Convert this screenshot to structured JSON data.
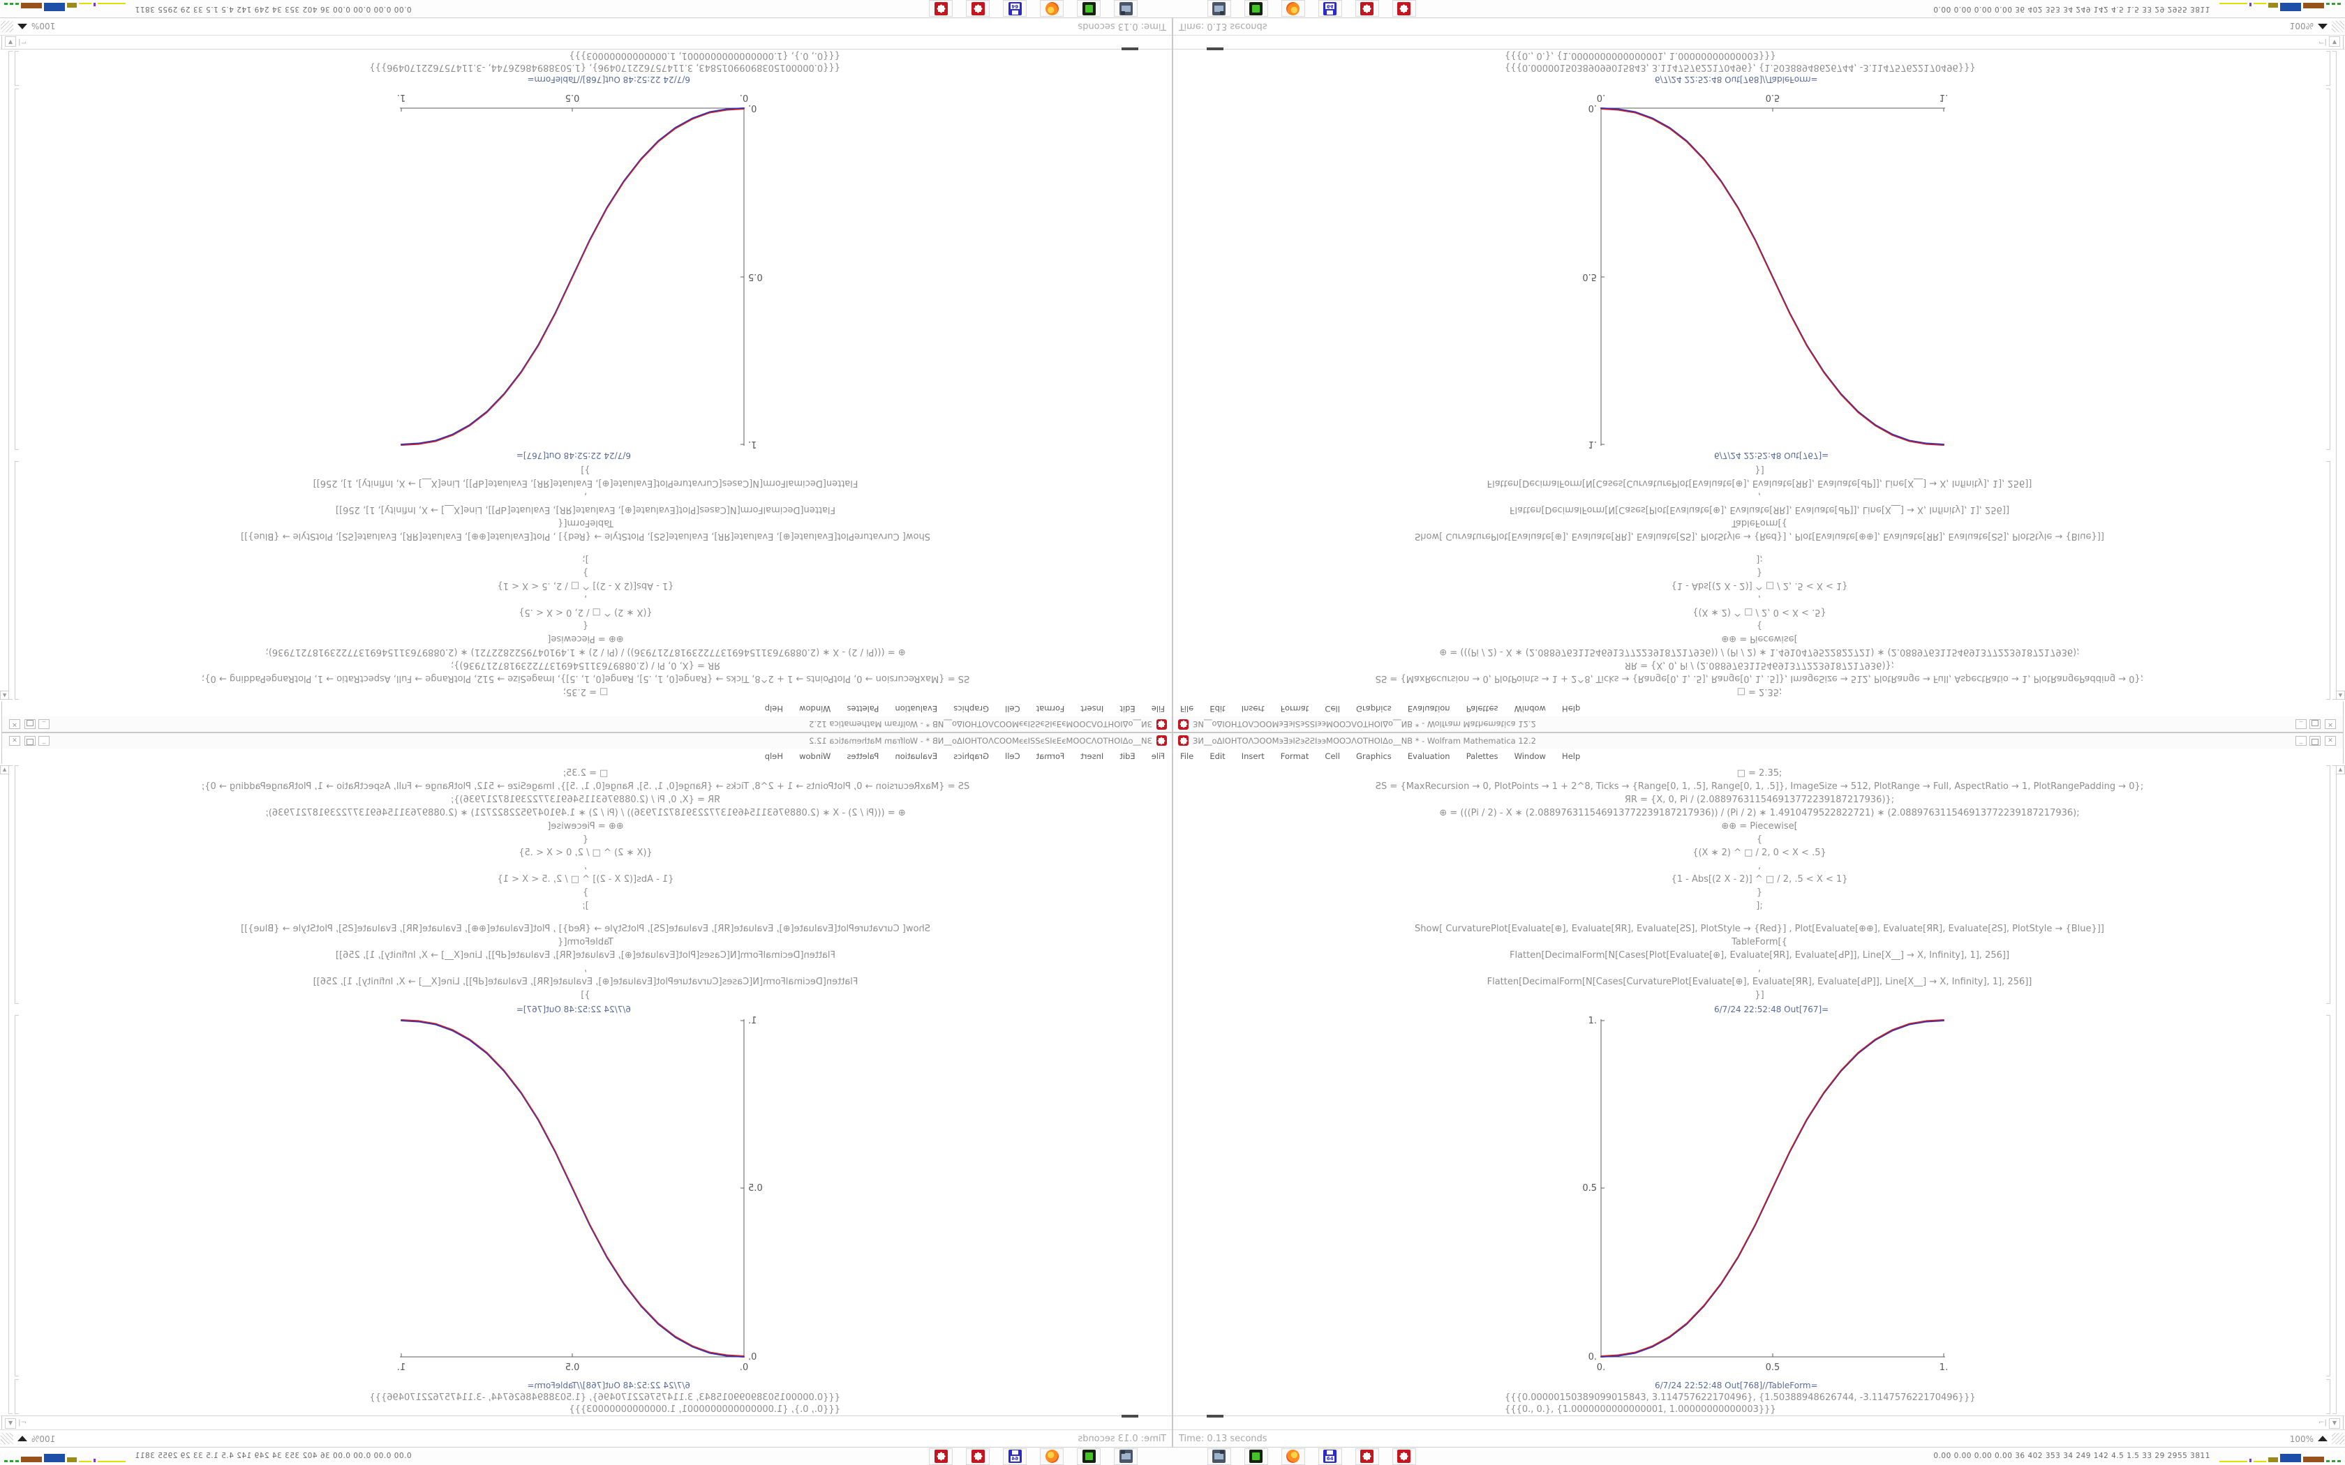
{
  "window": {
    "title": "ЗИ__oΔΙΟΗΤΟΛƆΟΟΜэƎэΙƧэƧƧΙээΜΟΟƆΛΟΤΗΟΙΔo__NB * - Wolfram Mathematica 12.2",
    "controls": {
      "minimize": "_",
      "close": "✕"
    },
    "menu": {
      "items": [
        "File",
        "Edit",
        "Insert",
        "Format",
        "Cell",
        "Graphics",
        "Evaluation",
        "Palettes",
        "Window",
        "Help"
      ]
    }
  },
  "notebook": {
    "code_lines": [
      "□ = 2.35;",
      "ƧS = {MaxRecursion → 0, PlotPoints → 1 + 2^8, Ticks → {Range[0, 1, .5], Range[0, 1, .5]}, ImageSize → 512, PlotRange → Full, AspectRatio → 1, PlotRangePadding → 0};",
      "ЯR = {X, 0, Pi / (2.088976311546913772239187217936)};",
      "⊕ = (((Pi / 2) - X ∗ (2.088976311546913772239187217936)) / (Pi / 2) ∗ 1.4910479522822721) ∗ (2.088976311546913772239187217936);",
      "⊕⊕ = Piecewise[",
      "{",
      "{(X ∗ 2) ^ □ / 2, 0 < X < .5}",
      ",",
      "{1 - Abs[(2 X - 2)] ^ □ / 2, .5 < X < 1}",
      "}",
      "];",
      "Show[  CurvaturePlot[Evaluate[⊕], Evaluate[ЯR], Evaluate[ƧS], PlotStyle → {Red}]  ,  Plot[Evaluate[⊕⊕], Evaluate[ЯR], Evaluate[ƧS],  PlotStyle → {Blue}]]",
      "TableForm[{",
      "Flatten[DecimalForm[N[Cases[Plot[Evaluate[⊕], Evaluate[ЯR], Evaluate[ԀP]], Line[X__] → X, Infinity], 1], 256]]",
      ",",
      "Flatten[DecimalForm[N[Cases[CurvaturePlot[Evaluate[⊕], Evaluate[ЯR], Evaluate[ԀP]], Line[X__] → X, Infinity], 1], 256]]",
      "}]"
    ],
    "out_plot_label": "6/7/24 22:52:48 Out[767]=",
    "out_table_label": "6/7/24 22:52:48 Out[768]//TableForm=",
    "table_rows": [
      "{{{0.00000150389099015843, 3.114757622170496}, {1.50388948626744, -3.114757622170496}}}",
      "{{{0., 0.}, {1.0000000000000001, 1.00000000000003}}}"
    ]
  },
  "chart_data": {
    "type": "line",
    "title": "",
    "xlabel": "",
    "ylabel": "",
    "xlim": [
      0,
      1
    ],
    "ylim": [
      0,
      1
    ],
    "x_tick_labels": [
      "0.",
      "0.5",
      "1."
    ],
    "y_tick_labels": [
      "0.",
      "0.5",
      "1."
    ],
    "grid": false,
    "legend": "none",
    "series": [
      {
        "name": "CurvaturePlot ⊕ (Red)",
        "color": "#cc2020",
        "points": [
          [
            0,
            0
          ],
          [
            0.05,
            0.0029
          ],
          [
            0.1,
            0.0114
          ],
          [
            0.15,
            0.0299
          ],
          [
            0.2,
            0.058
          ],
          [
            0.25,
            0.0975
          ],
          [
            0.3,
            0.1505
          ],
          [
            0.35,
            0.216
          ],
          [
            0.4,
            0.296
          ],
          [
            0.45,
            0.392
          ],
          [
            0.5,
            0.5
          ],
          [
            0.55,
            0.608
          ],
          [
            0.6,
            0.704
          ],
          [
            0.65,
            0.784
          ],
          [
            0.7,
            0.8495
          ],
          [
            0.75,
            0.9025
          ],
          [
            0.8,
            0.942
          ],
          [
            0.85,
            0.9701
          ],
          [
            0.9,
            0.9886
          ],
          [
            0.95,
            0.9971
          ],
          [
            1,
            1
          ]
        ]
      },
      {
        "name": "Plot ⊕⊕ (Blue)",
        "color": "#3030c0",
        "points": [
          [
            0,
            0
          ],
          [
            0.05,
            0.0029
          ],
          [
            0.1,
            0.0114
          ],
          [
            0.15,
            0.0299
          ],
          [
            0.2,
            0.058
          ],
          [
            0.25,
            0.0975
          ],
          [
            0.3,
            0.1505
          ],
          [
            0.35,
            0.216
          ],
          [
            0.4,
            0.296
          ],
          [
            0.45,
            0.392
          ],
          [
            0.5,
            0.5
          ],
          [
            0.55,
            0.608
          ],
          [
            0.6,
            0.704
          ],
          [
            0.65,
            0.784
          ],
          [
            0.7,
            0.8495
          ],
          [
            0.75,
            0.9025
          ],
          [
            0.8,
            0.942
          ],
          [
            0.85,
            0.9701
          ],
          [
            0.9,
            0.9886
          ],
          [
            0.95,
            0.9971
          ],
          [
            1,
            1
          ]
        ]
      }
    ]
  },
  "status_bar": {
    "timing": "Time: 0.13 seconds",
    "zoom": "100%"
  },
  "taskbar": {
    "icons": [
      "screenshot-tool",
      "file-manager-green",
      "firefox-browser",
      "disk-64",
      "mathematica-a",
      "mathematica-b"
    ],
    "tray_text": "0.00 0.00 0.00 0.00   36   402   353   34   249   142   4.5   1.5   33   29   2955 3811",
    "tray_graph_blocks": [
      {
        "color": "#e0e000",
        "w": 40,
        "h": 2
      },
      {
        "color": "#8833cc",
        "w": 3,
        "h": 5
      },
      {
        "color": "#e0e000",
        "w": 18,
        "h": 2
      },
      {
        "color": "#9b8b1a",
        "w": 14,
        "h": 7
      },
      {
        "color": "#1d4fa8",
        "w": 30,
        "h": 12
      },
      {
        "color": "#96521a",
        "w": 30,
        "h": 8
      },
      {
        "color": "#2fa32f",
        "w": 5,
        "h": 3
      },
      {
        "color": "#2fa32f",
        "w": 5,
        "h": 3
      },
      {
        "color": "#2fa32f",
        "w": 5,
        "h": 3
      }
    ]
  },
  "quadrants": [
    {
      "id": "tl",
      "orientation": "rotated-180"
    },
    {
      "id": "tr",
      "orientation": "flipped-vertical"
    },
    {
      "id": "bl",
      "orientation": "flipped-horizontal"
    },
    {
      "id": "br",
      "orientation": "normal"
    }
  ]
}
